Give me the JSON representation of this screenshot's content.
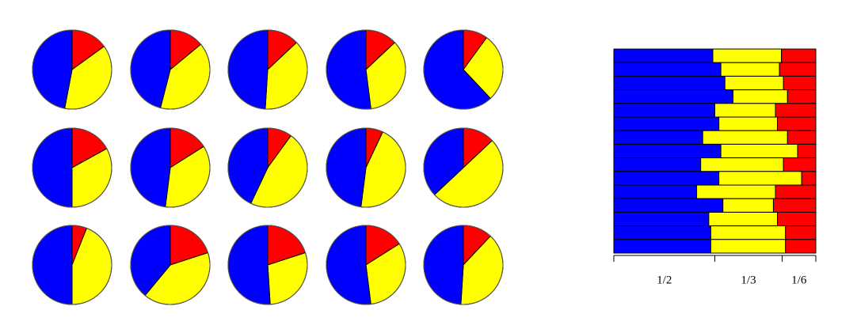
{
  "chart_data": [
    {
      "type": "pie",
      "colors": [
        "#ff0000",
        "#ffff00",
        "#0000ff"
      ],
      "pies": [
        {
          "values": [
            0.15,
            0.38,
            0.47
          ]
        },
        {
          "values": [
            0.14,
            0.4,
            0.46
          ]
        },
        {
          "values": [
            0.13,
            0.38,
            0.49
          ]
        },
        {
          "values": [
            0.13,
            0.35,
            0.52
          ]
        },
        {
          "values": [
            0.1,
            0.28,
            0.62
          ]
        },
        {
          "values": [
            0.17,
            0.33,
            0.5
          ]
        },
        {
          "values": [
            0.16,
            0.36,
            0.48
          ]
        },
        {
          "values": [
            0.1,
            0.47,
            0.43
          ]
        },
        {
          "values": [
            0.07,
            0.45,
            0.48
          ]
        },
        {
          "values": [
            0.13,
            0.5,
            0.37
          ]
        },
        {
          "values": [
            0.06,
            0.44,
            0.5
          ]
        },
        {
          "values": [
            0.2,
            0.41,
            0.39
          ]
        },
        {
          "values": [
            0.2,
            0.29,
            0.51
          ]
        },
        {
          "values": [
            0.16,
            0.32,
            0.52
          ]
        },
        {
          "values": [
            0.12,
            0.39,
            0.49
          ]
        }
      ]
    },
    {
      "type": "bar",
      "orientation": "horizontal",
      "stacked": true,
      "xlim": [
        0,
        1
      ],
      "series": [
        {
          "color": "#0000ff",
          "values": [
            0.49,
            0.53,
            0.55,
            0.59,
            0.5,
            0.52,
            0.44,
            0.53,
            0.43,
            0.52,
            0.41,
            0.54,
            0.47,
            0.48,
            0.48
          ]
        },
        {
          "color": "#ffff00",
          "values": [
            0.34,
            0.29,
            0.29,
            0.27,
            0.3,
            0.29,
            0.42,
            0.38,
            0.41,
            0.41,
            0.39,
            0.25,
            0.34,
            0.37,
            0.37
          ]
        },
        {
          "color": "#ff0000",
          "values": [
            0.17,
            0.18,
            0.16,
            0.14,
            0.2,
            0.19,
            0.14,
            0.09,
            0.16,
            0.07,
            0.2,
            0.21,
            0.19,
            0.15,
            0.15
          ]
        }
      ],
      "reference_shares": [
        {
          "value": 0.5,
          "label": "1/2"
        },
        {
          "value": 0.3333,
          "label": "1/3"
        },
        {
          "value": 0.1667,
          "label": "1/6"
        }
      ]
    }
  ]
}
